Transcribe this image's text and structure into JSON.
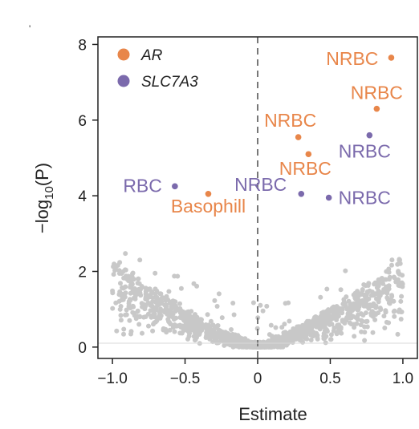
{
  "corner_mark": "'",
  "chart_data": {
    "type": "scatter",
    "xlabel": "Estimate",
    "ylabel_parts": {
      "pre": "−log",
      "sub": "10",
      "post": "(P)"
    },
    "xlim": [
      -1.1,
      1.1
    ],
    "ylim": [
      -0.3,
      8.2
    ],
    "xticks": [
      {
        "value": -1.0,
        "label": "−1.0"
      },
      {
        "value": -0.5,
        "label": "−0.5"
      },
      {
        "value": 0,
        "label": "0"
      },
      {
        "value": 0.5,
        "label": "0.5"
      },
      {
        "value": 1.0,
        "label": "1.0"
      }
    ],
    "yticks": [
      {
        "value": 0,
        "label": "0"
      },
      {
        "value": 2,
        "label": "2"
      },
      {
        "value": 4,
        "label": "4"
      },
      {
        "value": 6,
        "label": "6"
      },
      {
        "value": 8,
        "label": "8"
      }
    ],
    "reference_line": {
      "x": 0,
      "style": "dashed"
    },
    "colors": {
      "AR": "#e8864a",
      "SLC7A3": "#7b6aac",
      "background": "#c8c8c8"
    },
    "legend": {
      "position": "top-left",
      "entries": [
        {
          "name": "AR",
          "color": "#e8864a"
        },
        {
          "name": "SLC7A3",
          "color": "#7b6aac"
        }
      ]
    },
    "series": [
      {
        "name": "AR",
        "points": [
          {
            "x": 0.92,
            "y": 7.65,
            "label": "NRBC"
          },
          {
            "x": 0.82,
            "y": 6.3,
            "label": "NRBC"
          },
          {
            "x": 0.28,
            "y": 5.55,
            "label": "NRBC"
          },
          {
            "x": 0.35,
            "y": 5.1,
            "label": "NRBC"
          },
          {
            "x": -0.34,
            "y": 4.05,
            "label": "Basophill"
          }
        ]
      },
      {
        "name": "SLC7A3",
        "points": [
          {
            "x": 0.77,
            "y": 5.6,
            "label": "NRBC"
          },
          {
            "x": -0.57,
            "y": 4.25,
            "label": "RBC"
          },
          {
            "x": 0.3,
            "y": 4.05,
            "label": "NRBC"
          },
          {
            "x": 0.49,
            "y": 3.95,
            "label": "NRBC"
          }
        ]
      }
    ]
  }
}
